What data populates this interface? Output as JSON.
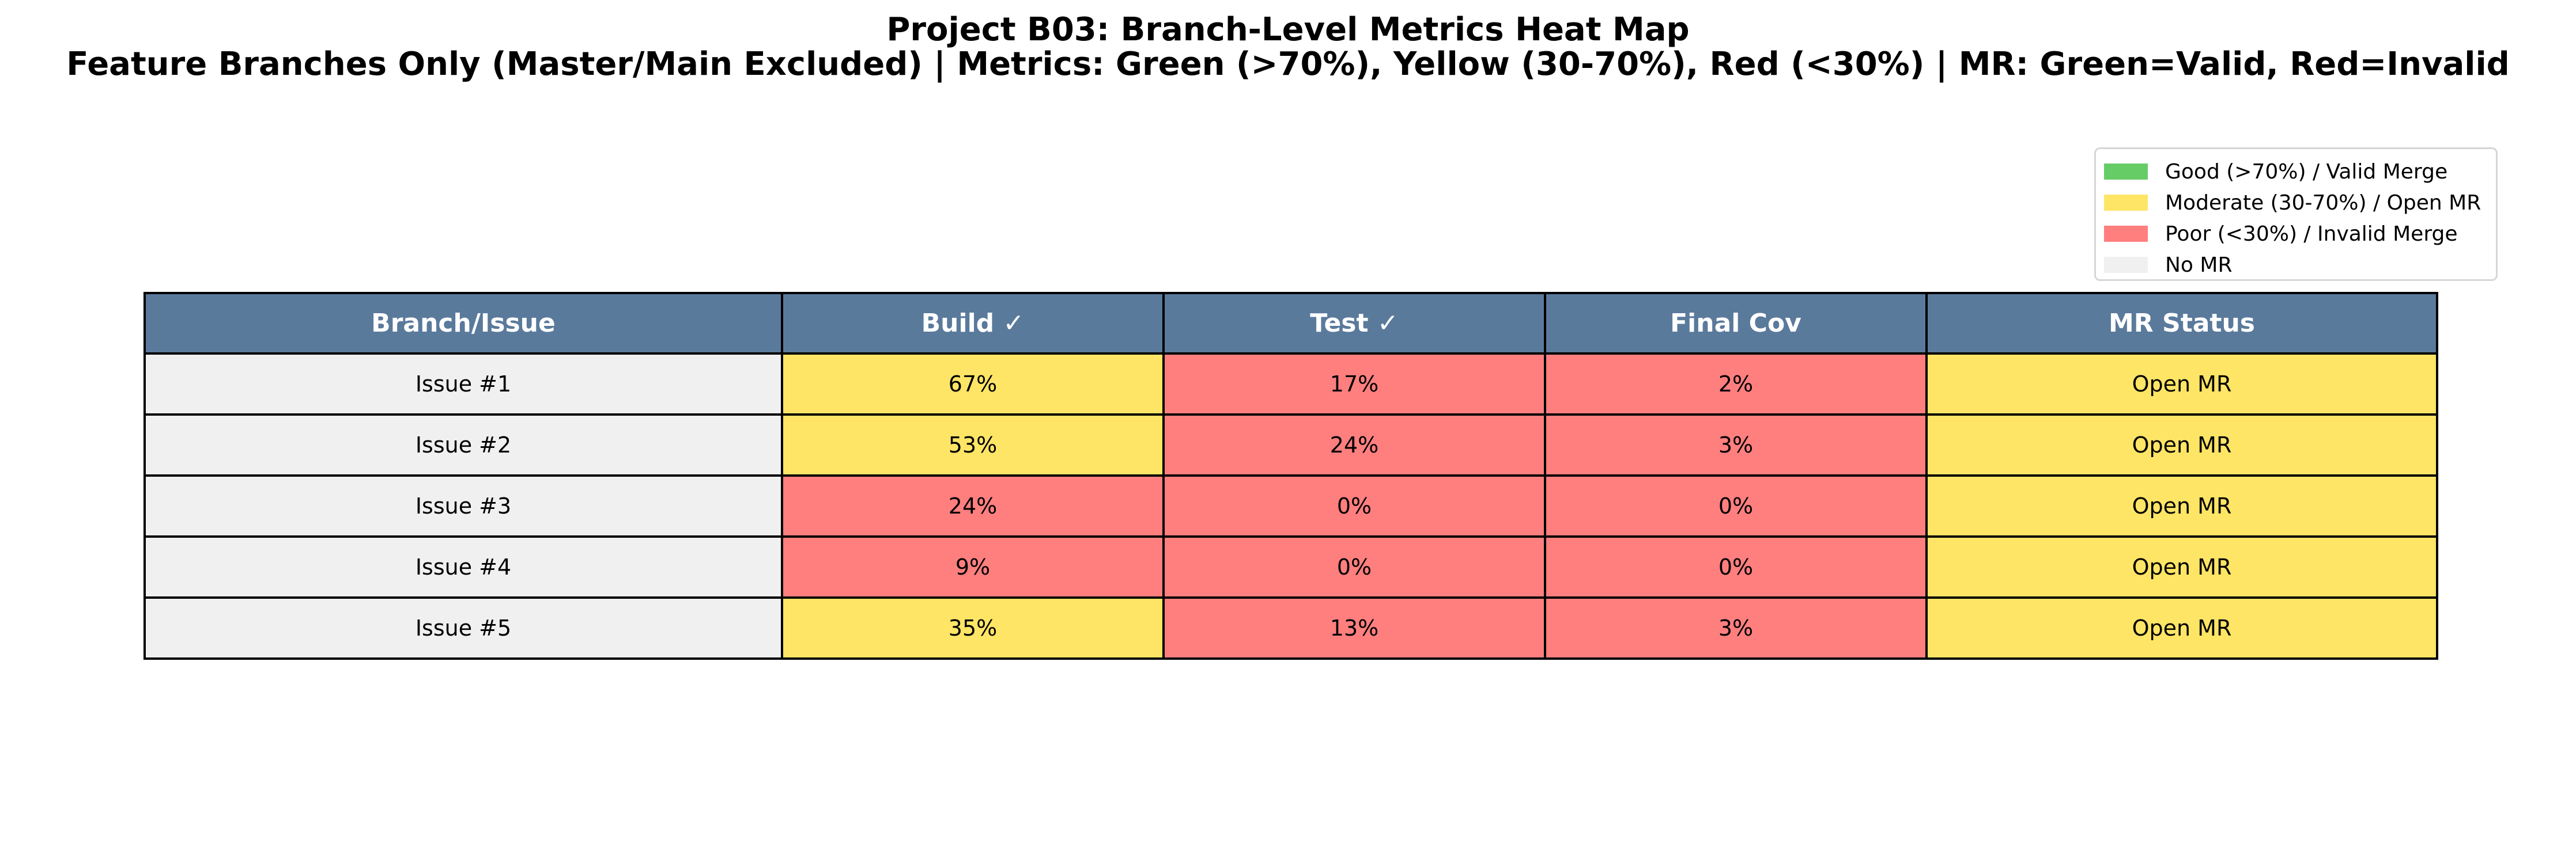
{
  "colors": {
    "good": "#66cc66",
    "moderate": "#ffe566",
    "poor": "#ff7f7f",
    "no_mr": "#f0f0f0",
    "header_bg": "#5a7a9c",
    "header_text": "#ffffff"
  },
  "chart_data": {
    "type": "table",
    "title": "Project B03: Branch-Level Metrics Heat Map",
    "subtitle": "Feature Branches Only (Master/Main Excluded) | Metrics: Green (>70%), Yellow (30-70%), Red (<30%) | MR: Green=Valid, Red=Invalid",
    "columns": [
      "Branch/Issue",
      "Build ✓",
      "Test ✓",
      "Final Cov",
      "MR Status"
    ],
    "rows": [
      {
        "branch": "Issue #1",
        "build": "67%",
        "test": "17%",
        "final_cov": "2%",
        "mr_status": "Open MR",
        "build_value": 67,
        "test_value": 17,
        "final_cov_value": 2,
        "build_color": "moderate",
        "test_color": "poor",
        "final_cov_color": "poor",
        "mr_color": "moderate"
      },
      {
        "branch": "Issue #2",
        "build": "53%",
        "test": "24%",
        "final_cov": "3%",
        "mr_status": "Open MR",
        "build_value": 53,
        "test_value": 24,
        "final_cov_value": 3,
        "build_color": "moderate",
        "test_color": "poor",
        "final_cov_color": "poor",
        "mr_color": "moderate"
      },
      {
        "branch": "Issue #3",
        "build": "24%",
        "test": "0%",
        "final_cov": "0%",
        "mr_status": "Open MR",
        "build_value": 24,
        "test_value": 0,
        "final_cov_value": 0,
        "build_color": "poor",
        "test_color": "poor",
        "final_cov_color": "poor",
        "mr_color": "moderate"
      },
      {
        "branch": "Issue #4",
        "build": "9%",
        "test": "0%",
        "final_cov": "0%",
        "mr_status": "Open MR",
        "build_value": 9,
        "test_value": 0,
        "final_cov_value": 0,
        "build_color": "poor",
        "test_color": "poor",
        "final_cov_color": "poor",
        "mr_color": "moderate"
      },
      {
        "branch": "Issue #5",
        "build": "35%",
        "test": "13%",
        "final_cov": "3%",
        "mr_status": "Open MR",
        "build_value": 35,
        "test_value": 13,
        "final_cov_value": 3,
        "build_color": "moderate",
        "test_color": "poor",
        "final_cov_color": "poor",
        "mr_color": "moderate"
      }
    ],
    "legend": {
      "placement": "top-right",
      "items": [
        {
          "label": "Good (>70%) / Valid Merge",
          "color": "#66cc66"
        },
        {
          "label": "Moderate (30-70%) / Open MR",
          "color": "#ffe566"
        },
        {
          "label": "Poor (<30%) / Invalid Merge",
          "color": "#ff7f7f"
        },
        {
          "label": "No MR",
          "color": "#f0f0f0"
        }
      ]
    }
  }
}
